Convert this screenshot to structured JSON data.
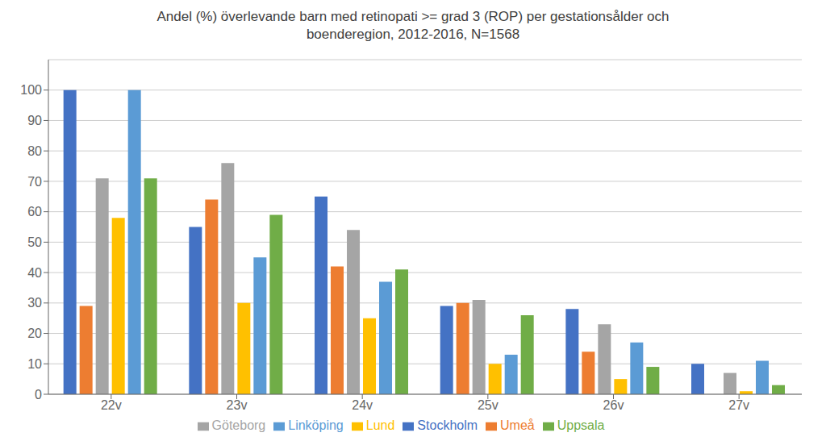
{
  "chart_data": {
    "type": "bar",
    "title": "Andel (%) överlevande barn med retinopati >= grad 3 (ROP) per gestationsålder och\nboenderegion, 2012-2016, N=1568",
    "categories": [
      "22v",
      "23v",
      "24v",
      "25v",
      "26v",
      "27v"
    ],
    "series": [
      {
        "name": "Stockholm",
        "color": "#4472C4",
        "values": [
          100,
          55,
          65,
          29,
          28,
          10
        ]
      },
      {
        "name": "Umeå",
        "color": "#ED7D31",
        "values": [
          29,
          64,
          42,
          30,
          14,
          0
        ]
      },
      {
        "name": "Göteborg",
        "color": "#A5A5A5",
        "values": [
          71,
          76,
          54,
          31,
          23,
          7
        ]
      },
      {
        "name": "Lund",
        "color": "#FFC000",
        "values": [
          58,
          30,
          25,
          10,
          5,
          1
        ]
      },
      {
        "name": "Linköping",
        "color": "#5B9BD5",
        "values": [
          100,
          45,
          37,
          13,
          17,
          11
        ]
      },
      {
        "name": "Uppsala",
        "color": "#70AD47",
        "values": [
          71,
          59,
          41,
          26,
          9,
          3
        ]
      }
    ],
    "ylim": [
      0,
      110
    ],
    "yticks": [
      0,
      10,
      20,
      30,
      40,
      50,
      60,
      70,
      80,
      90,
      100
    ],
    "grid": true,
    "legend": "bottom"
  }
}
